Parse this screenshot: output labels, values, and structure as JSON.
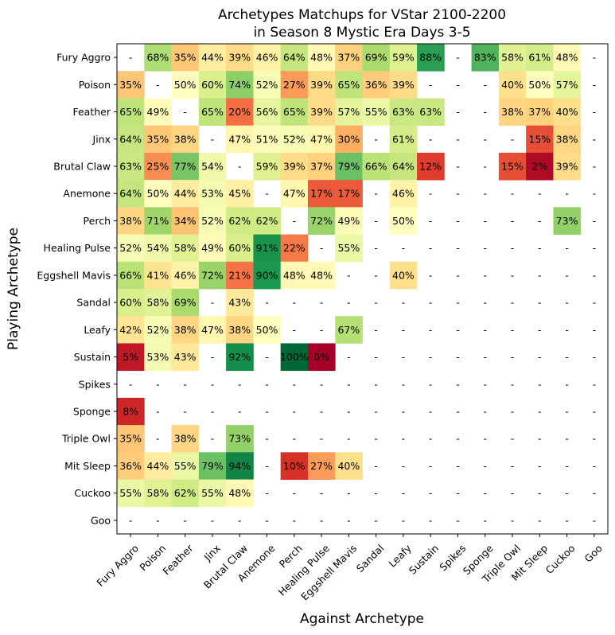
{
  "chart_data": {
    "type": "heatmap",
    "title": [
      "Archetypes Matchups for VStar 2100-2200",
      "in Season 8 Mystic Era Days 3-5"
    ],
    "xlabel": "Against Archetype",
    "ylabel": "Playing Archetype",
    "missing_label": "-",
    "value_format": "percent",
    "color_scale": "RdYlGn",
    "value_range": [
      0,
      100
    ],
    "rows": [
      "Fury Aggro",
      "Poison",
      "Feather",
      "Jinx",
      "Brutal Claw",
      "Anemone",
      "Perch",
      "Healing Pulse",
      "Eggshell Mavis",
      "Sandal",
      "Leafy",
      "Sustain",
      "Spikes",
      "Sponge",
      "Triple Owl",
      "Mit Sleep",
      "Cuckoo",
      "Goo"
    ],
    "columns": [
      "Fury Aggro",
      "Poison",
      "Feather",
      "Jinx",
      "Brutal Claw",
      "Anemone",
      "Perch",
      "Healing Pulse",
      "Eggshell Mavis",
      "Sandal",
      "Leafy",
      "Sustain",
      "Spikes",
      "Sponge",
      "Triple Owl",
      "Mit Sleep",
      "Cuckoo",
      "Goo"
    ],
    "values": [
      [
        null,
        68,
        35,
        44,
        39,
        46,
        64,
        48,
        37,
        69,
        59,
        88,
        null,
        83,
        58,
        61,
        48,
        null
      ],
      [
        35,
        null,
        50,
        60,
        74,
        52,
        27,
        39,
        65,
        36,
        39,
        null,
        null,
        null,
        40,
        50,
        57,
        null
      ],
      [
        65,
        49,
        null,
        65,
        20,
        56,
        65,
        39,
        57,
        55,
        63,
        63,
        null,
        null,
        38,
        37,
        40,
        null
      ],
      [
        64,
        35,
        38,
        null,
        47,
        51,
        52,
        47,
        30,
        null,
        61,
        null,
        null,
        null,
        null,
        15,
        38,
        null
      ],
      [
        63,
        25,
        77,
        54,
        null,
        59,
        39,
        37,
        79,
        66,
        64,
        12,
        null,
        null,
        15,
        2,
        39,
        null
      ],
      [
        64,
        50,
        44,
        53,
        45,
        null,
        47,
        17,
        17,
        null,
        46,
        null,
        null,
        null,
        null,
        null,
        null,
        null
      ],
      [
        38,
        71,
        34,
        52,
        62,
        62,
        null,
        72,
        49,
        null,
        50,
        null,
        null,
        null,
        null,
        null,
        73,
        null
      ],
      [
        52,
        54,
        58,
        49,
        60,
        91,
        22,
        null,
        55,
        null,
        null,
        null,
        null,
        null,
        null,
        null,
        null,
        null
      ],
      [
        66,
        41,
        46,
        72,
        21,
        90,
        48,
        48,
        null,
        null,
        40,
        null,
        null,
        null,
        null,
        null,
        null,
        null
      ],
      [
        60,
        58,
        69,
        null,
        43,
        null,
        null,
        null,
        null,
        null,
        null,
        null,
        null,
        null,
        null,
        null,
        null,
        null
      ],
      [
        42,
        52,
        38,
        47,
        38,
        50,
        null,
        null,
        67,
        null,
        null,
        null,
        null,
        null,
        null,
        null,
        null,
        null
      ],
      [
        5,
        53,
        43,
        null,
        92,
        null,
        100,
        0,
        null,
        null,
        null,
        null,
        null,
        null,
        null,
        null,
        null,
        null
      ],
      [
        null,
        null,
        null,
        null,
        null,
        null,
        null,
        null,
        null,
        null,
        null,
        null,
        null,
        null,
        null,
        null,
        null,
        null
      ],
      [
        8,
        null,
        null,
        null,
        null,
        null,
        null,
        null,
        null,
        null,
        null,
        null,
        null,
        null,
        null,
        null,
        null,
        null
      ],
      [
        35,
        null,
        38,
        null,
        73,
        null,
        null,
        null,
        null,
        null,
        null,
        null,
        null,
        null,
        null,
        null,
        null,
        null
      ],
      [
        36,
        44,
        55,
        79,
        94,
        null,
        10,
        27,
        40,
        null,
        null,
        null,
        null,
        null,
        null,
        null,
        null,
        null
      ],
      [
        55,
        58,
        62,
        55,
        48,
        null,
        null,
        null,
        null,
        null,
        null,
        null,
        null,
        null,
        null,
        null,
        null,
        null
      ],
      [
        null,
        null,
        null,
        null,
        null,
        null,
        null,
        null,
        null,
        null,
        null,
        null,
        null,
        null,
        null,
        null,
        null,
        null
      ]
    ]
  }
}
